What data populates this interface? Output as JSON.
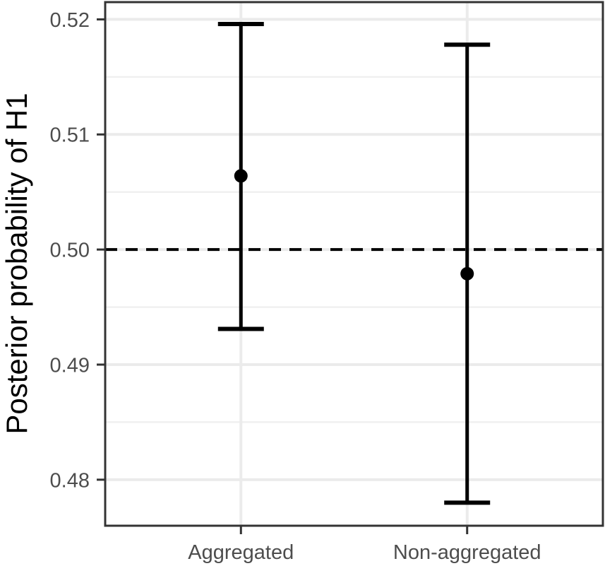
{
  "chart_data": {
    "type": "errorbar",
    "title": "",
    "xlabel": "",
    "ylabel": "Posterior probability of H1",
    "categories": [
      "Aggregated",
      "Non-aggregated"
    ],
    "series": [
      {
        "name": "Posterior probability of H1",
        "points": [
          {
            "category": "Aggregated",
            "estimate": 0.5064,
            "lower": 0.4931,
            "upper": 0.5196
          },
          {
            "category": "Non-aggregated",
            "estimate": 0.4979,
            "lower": 0.478,
            "upper": 0.5178
          }
        ]
      }
    ],
    "reference_line": {
      "y": 0.5,
      "style": "dashed"
    },
    "y_axis": {
      "ylim": [
        0.476,
        0.5215
      ],
      "ticks": [
        0.48,
        0.49,
        0.5,
        0.51,
        0.52
      ],
      "tick_labels": [
        "0.48",
        "0.49",
        "0.50",
        "0.51",
        "0.52"
      ],
      "minor_ticks": [
        0.485,
        0.495,
        0.505,
        0.515
      ]
    },
    "grid": "major+minor",
    "legend": "none"
  },
  "colors": {
    "background": "#ffffff",
    "panel_border": "#333333",
    "grid_major": "#ebebeb",
    "grid_minor": "#f0f0f0",
    "axis_tick": "#333333",
    "tick_label": "#4d4d4d",
    "axis_title": "#000000",
    "data": "#000000"
  }
}
